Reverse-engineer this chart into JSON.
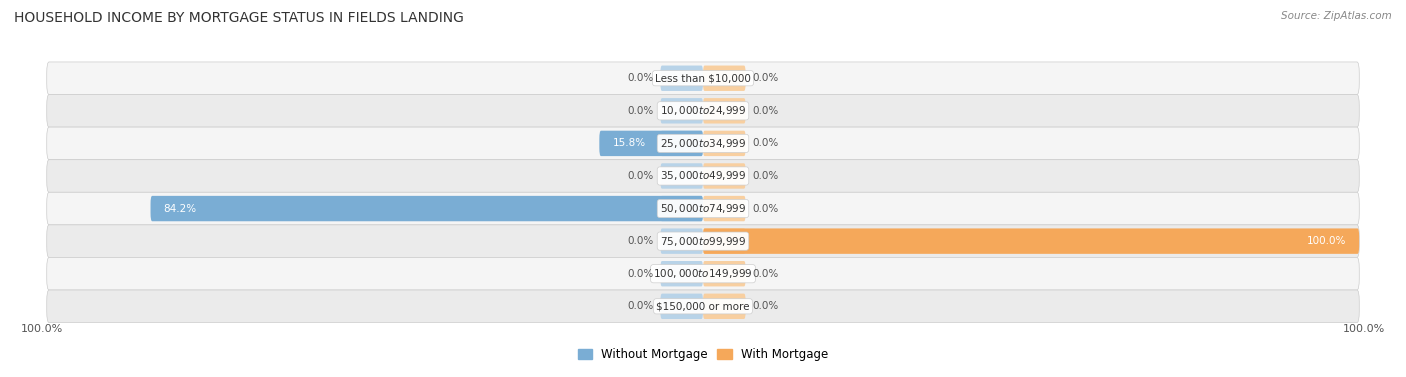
{
  "title": "HOUSEHOLD INCOME BY MORTGAGE STATUS IN FIELDS LANDING",
  "source": "Source: ZipAtlas.com",
  "categories": [
    "Less than $10,000",
    "$10,000 to $24,999",
    "$25,000 to $34,999",
    "$35,000 to $49,999",
    "$50,000 to $74,999",
    "$75,000 to $99,999",
    "$100,000 to $149,999",
    "$150,000 or more"
  ],
  "without_mortgage": [
    0.0,
    0.0,
    15.8,
    0.0,
    84.2,
    0.0,
    0.0,
    0.0
  ],
  "with_mortgage": [
    0.0,
    0.0,
    0.0,
    0.0,
    0.0,
    100.0,
    0.0,
    0.0
  ],
  "color_without": "#7aadd4",
  "color_with": "#f5a85a",
  "color_without_light": "#b8d3e8",
  "color_with_light": "#f8cfa0",
  "row_bg_light": "#f5f5f5",
  "row_bg_dark": "#ebebeb",
  "x_left_label": "100.0%",
  "x_right_label": "100.0%",
  "legend_without": "Without Mortgage",
  "legend_with": "With Mortgage",
  "title_fontsize": 10,
  "source_fontsize": 7.5,
  "bar_fontsize": 7.5,
  "label_fontsize": 7.5
}
